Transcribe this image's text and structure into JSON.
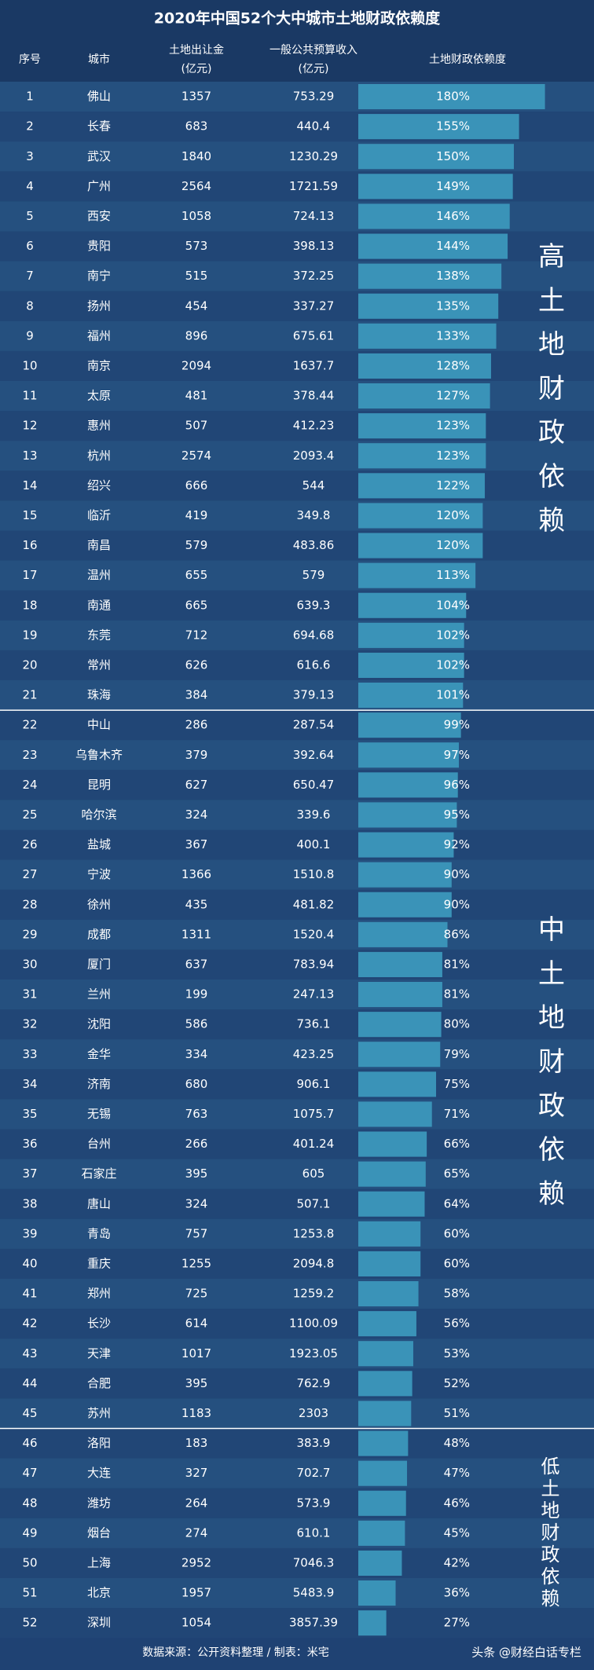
{
  "chart_data": {
    "type": "bar",
    "title": "2020年中国52个大中城市土地财政依赖度",
    "headers": [
      "序号",
      "城市",
      "土地出让金",
      "一般公共预算收入",
      "土地财政依赖度"
    ],
    "header_units": [
      "(亿元)",
      "(亿元)"
    ],
    "ranks": [
      1,
      2,
      3,
      4,
      5,
      6,
      7,
      8,
      9,
      10,
      11,
      12,
      13,
      14,
      15,
      16,
      17,
      18,
      19,
      20,
      21,
      22,
      23,
      24,
      25,
      26,
      27,
      28,
      29,
      30,
      31,
      32,
      33,
      34,
      35,
      36,
      37,
      38,
      39,
      40,
      41,
      42,
      43,
      44,
      45,
      46,
      47,
      48,
      49,
      50,
      51,
      52
    ],
    "categories": [
      "佛山",
      "长春",
      "武汉",
      "广州",
      "西安",
      "贵阳",
      "南宁",
      "扬州",
      "福州",
      "南京",
      "太原",
      "惠州",
      "杭州",
      "绍兴",
      "临沂",
      "南昌",
      "温州",
      "南通",
      "东莞",
      "常州",
      "珠海",
      "中山",
      "乌鲁木齐",
      "昆明",
      "哈尔滨",
      "盐城",
      "宁波",
      "徐州",
      "成都",
      "厦门",
      "兰州",
      "沈阳",
      "金华",
      "济南",
      "无锡",
      "台州",
      "石家庄",
      "唐山",
      "青岛",
      "重庆",
      "郑州",
      "长沙",
      "天津",
      "合肥",
      "苏州",
      "洛阳",
      "大连",
      "潍坊",
      "烟台",
      "上海",
      "北京",
      "深圳"
    ],
    "land_sales": [
      1357,
      683,
      1840,
      2564,
      1058,
      573,
      515,
      454,
      896,
      2094,
      481,
      507,
      2574,
      666,
      419,
      579,
      655,
      665,
      712,
      626,
      384,
      286,
      379,
      627,
      324,
      367,
      1366,
      435,
      1311,
      637,
      199,
      586,
      334,
      680,
      763,
      266,
      395,
      324,
      757,
      1255,
      725,
      614,
      1017,
      395,
      1183,
      183,
      327,
      264,
      274,
      2952,
      1957,
      1054
    ],
    "budget_revenue": [
      753.29,
      440.4,
      1230.29,
      1721.59,
      724.13,
      398.13,
      372.25,
      337.27,
      675.61,
      1637.7,
      378.44,
      412.23,
      2093.4,
      544,
      349.8,
      483.86,
      579,
      639.3,
      694.68,
      616.6,
      379.13,
      287.54,
      392.64,
      650.47,
      339.6,
      400.1,
      1510.8,
      481.82,
      1520.4,
      783.94,
      247.13,
      736.1,
      423.25,
      906.1,
      1075.7,
      401.24,
      605,
      507.1,
      1253.8,
      2094.8,
      1259.2,
      1100.09,
      1923.05,
      762.9,
      2303,
      383.9,
      702.7,
      573.9,
      610.1,
      7046.3,
      5483.9,
      3857.39
    ],
    "values": [
      180,
      155,
      150,
      149,
      146,
      144,
      138,
      135,
      133,
      128,
      127,
      123,
      123,
      122,
      120,
      120,
      113,
      104,
      102,
      102,
      101,
      99,
      97,
      96,
      95,
      92,
      90,
      90,
      86,
      81,
      81,
      80,
      79,
      75,
      71,
      66,
      65,
      64,
      60,
      60,
      58,
      56,
      53,
      52,
      51,
      48,
      47,
      46,
      45,
      42,
      36,
      27
    ],
    "value_labels": [
      "180%",
      "155%",
      "150%",
      "149%",
      "146%",
      "144%",
      "138%",
      "135%",
      "133%",
      "128%",
      "127%",
      "123%",
      "123%",
      "122%",
      "120%",
      "120%",
      "113%",
      "104%",
      "102%",
      "102%",
      "101%",
      "99%",
      "97%",
      "96%",
      "95%",
      "92%",
      "90%",
      "90%",
      "86%",
      "81%",
      "81%",
      "80%",
      "79%",
      "75%",
      "71%",
      "66%",
      "65%",
      "64%",
      "60%",
      "60%",
      "58%",
      "56%",
      "53%",
      "52%",
      "51%",
      "48%",
      "47%",
      "46%",
      "45%",
      "42%",
      "36%",
      "27%"
    ],
    "color": "#3a93b8",
    "groups": [
      "高土地财政依赖",
      "中土地财政依赖",
      "低土地财政依赖"
    ],
    "source": "数据来源：公开资料整理 / 制表：米宅",
    "watermark": "头条 @财经白话专栏"
  }
}
